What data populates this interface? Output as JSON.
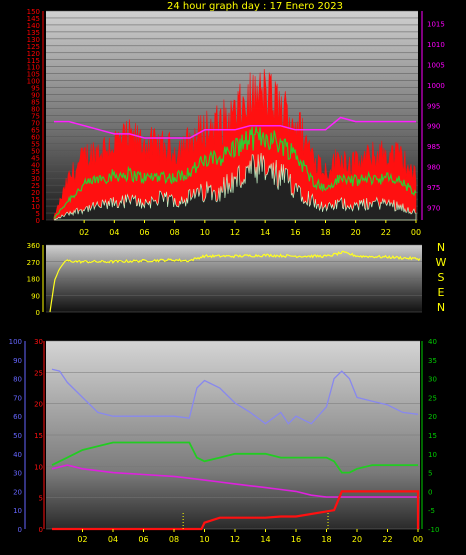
{
  "title": "24 hour graph day : 17 Enero 2023",
  "colors": {
    "wind_gust": "#ff1010",
    "wind_avg": "#30cc30",
    "wind_min": "#c8f7c8",
    "pressure": "#ff22ff",
    "direction": "#ffff20",
    "humidity": "#8888ee",
    "temperature": "#22cc22",
    "dewpoint": "#dd22dd",
    "rain": "#ff1010",
    "left_axis": "#ff0000",
    "right_axis": "#ff00ff",
    "hum_axis": "#6666ff",
    "temp_axis": "#00cc00"
  },
  "x_ticks": [
    "02",
    "04",
    "06",
    "08",
    "10",
    "12",
    "14",
    "16",
    "18",
    "20",
    "22",
    "00"
  ],
  "chart_data": [
    {
      "type": "line",
      "name": "wind-pressure",
      "left_axis_ticks": [
        "0",
        "5",
        "10",
        "15",
        "20",
        "25",
        "30",
        "35",
        "40",
        "45",
        "50",
        "55",
        "60",
        "65",
        "70",
        "75",
        "80",
        "85",
        "90",
        "95",
        "100",
        "105",
        "110",
        "115",
        "120",
        "125",
        "130",
        "135",
        "140",
        "145",
        "150"
      ],
      "ylim_left": [
        0,
        150
      ],
      "right_axis_ticks": [
        "970",
        "975",
        "980",
        "985",
        "990",
        "995",
        "1000",
        "1005",
        "1010",
        "1015"
      ],
      "ylim_right": [
        967,
        1018
      ],
      "x_hours": [
        0,
        1,
        2,
        3,
        4,
        5,
        6,
        7,
        8,
        9,
        10,
        11,
        12,
        13,
        14,
        15,
        16,
        17,
        18,
        19,
        20,
        21,
        22,
        23,
        24
      ],
      "series": [
        {
          "key": "gust",
          "values": [
            2,
            30,
            45,
            50,
            55,
            58,
            55,
            52,
            50,
            55,
            65,
            68,
            75,
            85,
            90,
            80,
            70,
            50,
            35,
            45,
            40,
            45,
            48,
            45,
            30
          ]
        },
        {
          "key": "avg",
          "values": [
            1,
            15,
            25,
            30,
            32,
            33,
            30,
            32,
            30,
            35,
            42,
            45,
            52,
            58,
            60,
            55,
            48,
            30,
            22,
            30,
            28,
            30,
            30,
            28,
            18
          ]
        },
        {
          "key": "min",
          "values": [
            0,
            5,
            8,
            10,
            12,
            14,
            12,
            15,
            14,
            16,
            20,
            22,
            28,
            34,
            35,
            30,
            25,
            15,
            8,
            12,
            10,
            12,
            12,
            10,
            5
          ]
        },
        {
          "key": "pressure",
          "values": [
            991,
            991,
            990,
            989,
            988,
            988,
            987,
            987,
            987,
            987,
            989,
            989,
            989,
            990,
            990,
            990,
            989,
            989,
            989,
            992,
            991,
            991,
            991,
            991,
            991
          ]
        }
      ]
    },
    {
      "type": "line",
      "name": "wind-direction",
      "left_axis_ticks": [
        "0",
        "90",
        "180",
        "270",
        "360"
      ],
      "ylim_left": [
        0,
        360
      ],
      "right_axis_labels": [
        "N",
        "W",
        "S",
        "E",
        "N"
      ],
      "x_hours": [
        0,
        0.3,
        0.6,
        1,
        2,
        4,
        6,
        8,
        9,
        10,
        12,
        14,
        16,
        18,
        19,
        20,
        22,
        24
      ],
      "series": [
        {
          "key": "direction",
          "values": [
            0,
            170,
            230,
            275,
            270,
            270,
            275,
            280,
            275,
            300,
            300,
            305,
            300,
            300,
            320,
            300,
            295,
            285
          ]
        }
      ]
    },
    {
      "type": "line",
      "name": "temperature-humidity",
      "hum_axis_ticks": [
        "0",
        "10",
        "20",
        "30",
        "40",
        "50",
        "60",
        "70",
        "80",
        "90",
        "100"
      ],
      "ylim_hum": [
        0,
        100
      ],
      "rain_axis_ticks": [
        "0",
        "5",
        "10",
        "15",
        "20",
        "25",
        "30"
      ],
      "ylim_rain": [
        0,
        30
      ],
      "temp_axis_ticks": [
        "-10",
        "-5",
        "0",
        "5",
        "10",
        "15",
        "20",
        "25",
        "30",
        "35",
        "40"
      ],
      "ylim_temp": [
        -10,
        40
      ],
      "series": [
        {
          "key": "humidity",
          "x": [
            0,
            0.5,
            1,
            2,
            3,
            4,
            6,
            8,
            9,
            9.5,
            10,
            11,
            12,
            13,
            14,
            15,
            15.5,
            16,
            17,
            18,
            18.5,
            19,
            19.5,
            20,
            21,
            22,
            23,
            24
          ],
          "values": [
            85,
            84,
            78,
            70,
            62,
            60,
            60,
            60,
            59,
            75,
            79,
            75,
            67,
            62,
            56,
            62,
            56,
            60,
            56,
            65,
            80,
            84,
            80,
            70,
            68,
            66,
            62,
            61
          ]
        },
        {
          "key": "temperature",
          "x": [
            0,
            1,
            2,
            3,
            4,
            5,
            6,
            8,
            9,
            9.5,
            10,
            11,
            12,
            13,
            14,
            15,
            16,
            17,
            18,
            18.5,
            19,
            19.5,
            20,
            21,
            22,
            23,
            24
          ],
          "values": [
            7,
            9,
            11,
            12,
            13,
            13,
            13,
            13,
            13,
            9,
            8,
            9,
            10,
            10,
            10,
            9,
            9,
            9,
            9,
            8,
            5,
            5,
            6,
            7,
            7,
            7,
            7
          ]
        },
        {
          "key": "dewpoint",
          "x": [
            0,
            1,
            2,
            3,
            4,
            6,
            8,
            9,
            10,
            11,
            12,
            13,
            14,
            15,
            16,
            17,
            18,
            19,
            20,
            21,
            22,
            23,
            24
          ],
          "values": [
            6,
            7,
            6,
            5.5,
            5,
            4.5,
            4,
            3.5,
            3,
            2.5,
            2,
            1.5,
            1,
            0.5,
            0,
            -1,
            -1.5,
            -1.5,
            -1.5,
            -1.5,
            -1.5,
            -1.5,
            -1.5
          ]
        },
        {
          "key": "rain",
          "x": [
            0,
            9,
            9.8,
            10,
            11,
            14,
            15,
            16,
            18.5,
            19,
            19.2,
            20,
            22,
            24,
            24
          ],
          "values": [
            0,
            0,
            0,
            1,
            1.8,
            1.8,
            2,
            2,
            3,
            6,
            6,
            6,
            6,
            6,
            0
          ]
        }
      ]
    }
  ]
}
